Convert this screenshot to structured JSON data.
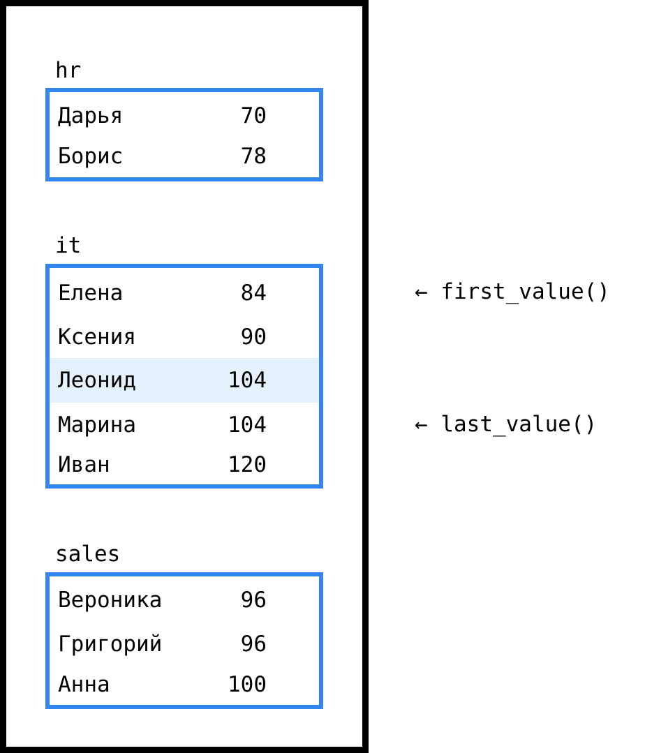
{
  "groups": [
    {
      "label": "hr",
      "rows": [
        {
          "name": "Дарья",
          "value": "70"
        },
        {
          "name": "Борис",
          "value": "78"
        }
      ]
    },
    {
      "label": "it",
      "rows": [
        {
          "name": "Елена",
          "value": "84"
        },
        {
          "name": "Ксения",
          "value": "90"
        },
        {
          "name": "Леонид",
          "value": "104",
          "highlighted": true
        },
        {
          "name": "Марина",
          "value": "104"
        },
        {
          "name": "Иван",
          "value": "120"
        }
      ]
    },
    {
      "label": "sales",
      "rows": [
        {
          "name": "Вероника",
          "value": "96"
        },
        {
          "name": "Григорий",
          "value": "96"
        },
        {
          "name": "Анна",
          "value": "100"
        }
      ]
    }
  ],
  "annotations": {
    "first": "← first_value()",
    "last": "← last_value()"
  },
  "colors": {
    "box_border": "#3385f0",
    "highlight_row": "#e5f1fd",
    "frame": "#000000"
  }
}
